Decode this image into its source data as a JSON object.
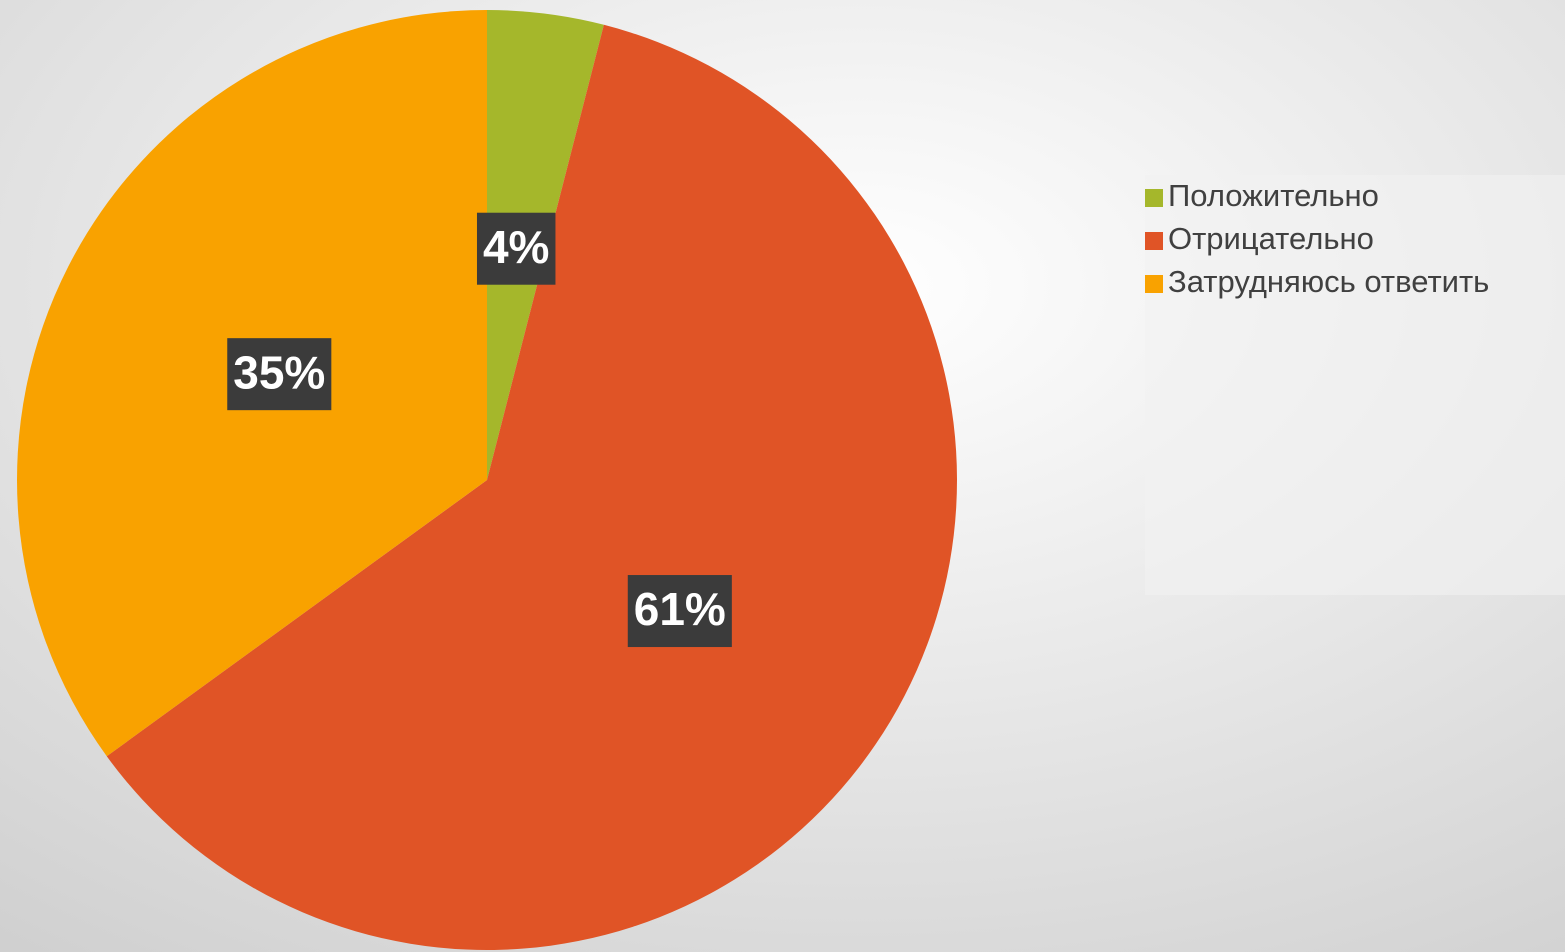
{
  "chart_data": {
    "type": "pie",
    "categories": [
      "Положительно",
      "Отрицательно",
      "Затрудняюсь ответить"
    ],
    "values": [
      4,
      61,
      35
    ],
    "value_labels": [
      "4%",
      "61%",
      "35%"
    ],
    "colors": [
      "#a5b72b",
      "#e05426",
      "#f9a200"
    ],
    "legend": "right"
  }
}
